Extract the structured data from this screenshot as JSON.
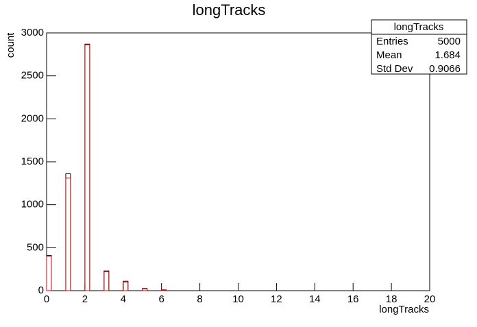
{
  "chart_data": {
    "type": "histogram",
    "title": "longTracks",
    "xlabel": "longTracks",
    "ylabel": "count",
    "bins": [
      0,
      0.25,
      0.5,
      0.75,
      1,
      1.25,
      1.5,
      1.75,
      2,
      2.25,
      2.5,
      2.75,
      3,
      3.25,
      3.5,
      3.75,
      4,
      4.25,
      4.5,
      4.75,
      5,
      5.25,
      5.5,
      5.75,
      6,
      6.25,
      6.5,
      6.75,
      7,
      7.25,
      7.5,
      7.75,
      8,
      8.25,
      8.5,
      8.75,
      9,
      9.25,
      9.5,
      9.75,
      10,
      10.25,
      10.5,
      10.75,
      11,
      11.25,
      11.5,
      11.75,
      12,
      12.25,
      12.5,
      12.75,
      13,
      13.25,
      13.5,
      13.75,
      14,
      14.25,
      14.5,
      14.75,
      15,
      15.25,
      15.5,
      15.75,
      16,
      16.25,
      16.5,
      16.75,
      17,
      17.25,
      17.5,
      17.75,
      18,
      18.25,
      18.5,
      18.75,
      19,
      19.25,
      19.5,
      19.75,
      20
    ],
    "series": [
      {
        "color": "#000000",
        "counts": [
          410,
          0,
          0,
          0,
          1360,
          0,
          0,
          0,
          2870,
          0,
          0,
          0,
          230,
          0,
          0,
          0,
          110,
          0,
          0,
          0,
          25,
          0,
          0,
          0,
          10,
          0,
          0,
          0,
          0,
          0,
          0,
          0,
          0,
          0,
          0,
          0,
          0,
          0,
          0,
          0,
          0,
          0,
          0,
          0,
          0,
          0,
          0,
          0,
          0,
          0,
          0,
          0,
          0,
          0,
          0,
          0,
          0,
          0,
          0,
          0,
          0,
          0,
          0,
          0,
          0,
          0,
          0,
          0,
          0,
          0,
          0,
          0,
          0,
          0,
          0,
          0,
          0,
          0,
          0,
          0
        ]
      },
      {
        "color": "#e00000",
        "counts": [
          400,
          0,
          0,
          0,
          1310,
          0,
          0,
          0,
          2860,
          0,
          0,
          0,
          220,
          0,
          0,
          0,
          100,
          0,
          0,
          0,
          20,
          0,
          0,
          0,
          8,
          0,
          0,
          0,
          0,
          0,
          0,
          0,
          0,
          0,
          0,
          0,
          0,
          0,
          0,
          0,
          0,
          0,
          0,
          0,
          0,
          0,
          0,
          0,
          0,
          0,
          0,
          0,
          0,
          0,
          0,
          0,
          0,
          0,
          0,
          0,
          0,
          0,
          0,
          0,
          0,
          0,
          0,
          0,
          0,
          0,
          0,
          0,
          0,
          0,
          0,
          0,
          0,
          0,
          0,
          0
        ]
      }
    ],
    "xlim": [
      0,
      20
    ],
    "xticks": [
      0,
      2,
      4,
      6,
      8,
      10,
      12,
      14,
      16,
      18,
      20
    ],
    "ylim": [
      0,
      3000
    ],
    "yticks": [
      0,
      500,
      1000,
      1500,
      2000,
      2500,
      3000
    ],
    "stats": {
      "title": "longTracks",
      "rows": [
        [
          "Entries",
          5000
        ],
        [
          "Mean",
          1.684
        ],
        [
          "Std Dev",
          0.9066
        ]
      ]
    }
  }
}
